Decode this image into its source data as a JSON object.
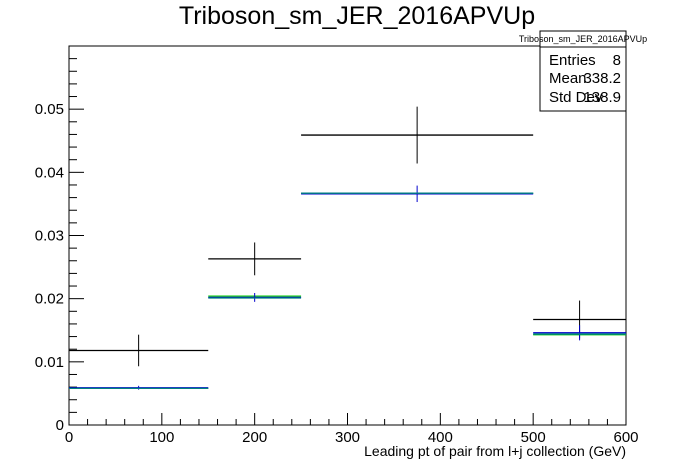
{
  "chart_data": {
    "type": "line",
    "title": "Triboson_sm_JER_2016APVUp",
    "xlabel": "Leading pt of pair from l+j collection (GeV)",
    "ylabel": "",
    "xlim": [
      0,
      600
    ],
    "ylim": [
      0,
      0.06
    ],
    "grid": false,
    "x_ticks": [
      0,
      100,
      200,
      300,
      400,
      500,
      600
    ],
    "x_tick_labels": [
      "0",
      "100",
      "200",
      "300",
      "400",
      "500",
      "600"
    ],
    "y_ticks": [
      0,
      0.01,
      0.02,
      0.03,
      0.04,
      0.05
    ],
    "y_tick_labels": [
      "0",
      "0.01",
      "0.02",
      "0.03",
      "0.04",
      "0.05"
    ],
    "bin_edges": [
      0,
      150,
      250,
      500,
      600
    ],
    "series": [
      {
        "color": "#000000",
        "style": "errorbar",
        "values": [
          0.0118,
          0.0263,
          0.0459,
          0.0167
        ],
        "errors": [
          0.0025,
          0.0026,
          0.0045,
          0.003
        ]
      },
      {
        "color": "#00cc00",
        "style": "hist",
        "values": [
          0.0058,
          0.0204,
          0.0367,
          0.0143
        ],
        "errors": [
          0,
          0,
          0,
          0
        ]
      },
      {
        "color": "#0000cc",
        "style": "hist",
        "values": [
          0.0059,
          0.0202,
          0.0366,
          0.0146
        ],
        "errors": [
          0.0003,
          0.0007,
          0.0013,
          0.0012
        ]
      },
      {
        "color": "#008080",
        "style": "hist",
        "values": [
          0.0058,
          0.0201,
          0.0367,
          0.0144
        ],
        "errors": [
          0,
          0,
          0,
          0
        ]
      }
    ],
    "stats_box": {
      "title": "Triboson_sm_JER_2016APVUp",
      "placement": "top-right",
      "rows": [
        {
          "label": "Entries",
          "value": "8"
        },
        {
          "label": "Mean",
          "value": "338.2"
        },
        {
          "label": "Std Dev",
          "value": "138.9"
        }
      ]
    }
  }
}
